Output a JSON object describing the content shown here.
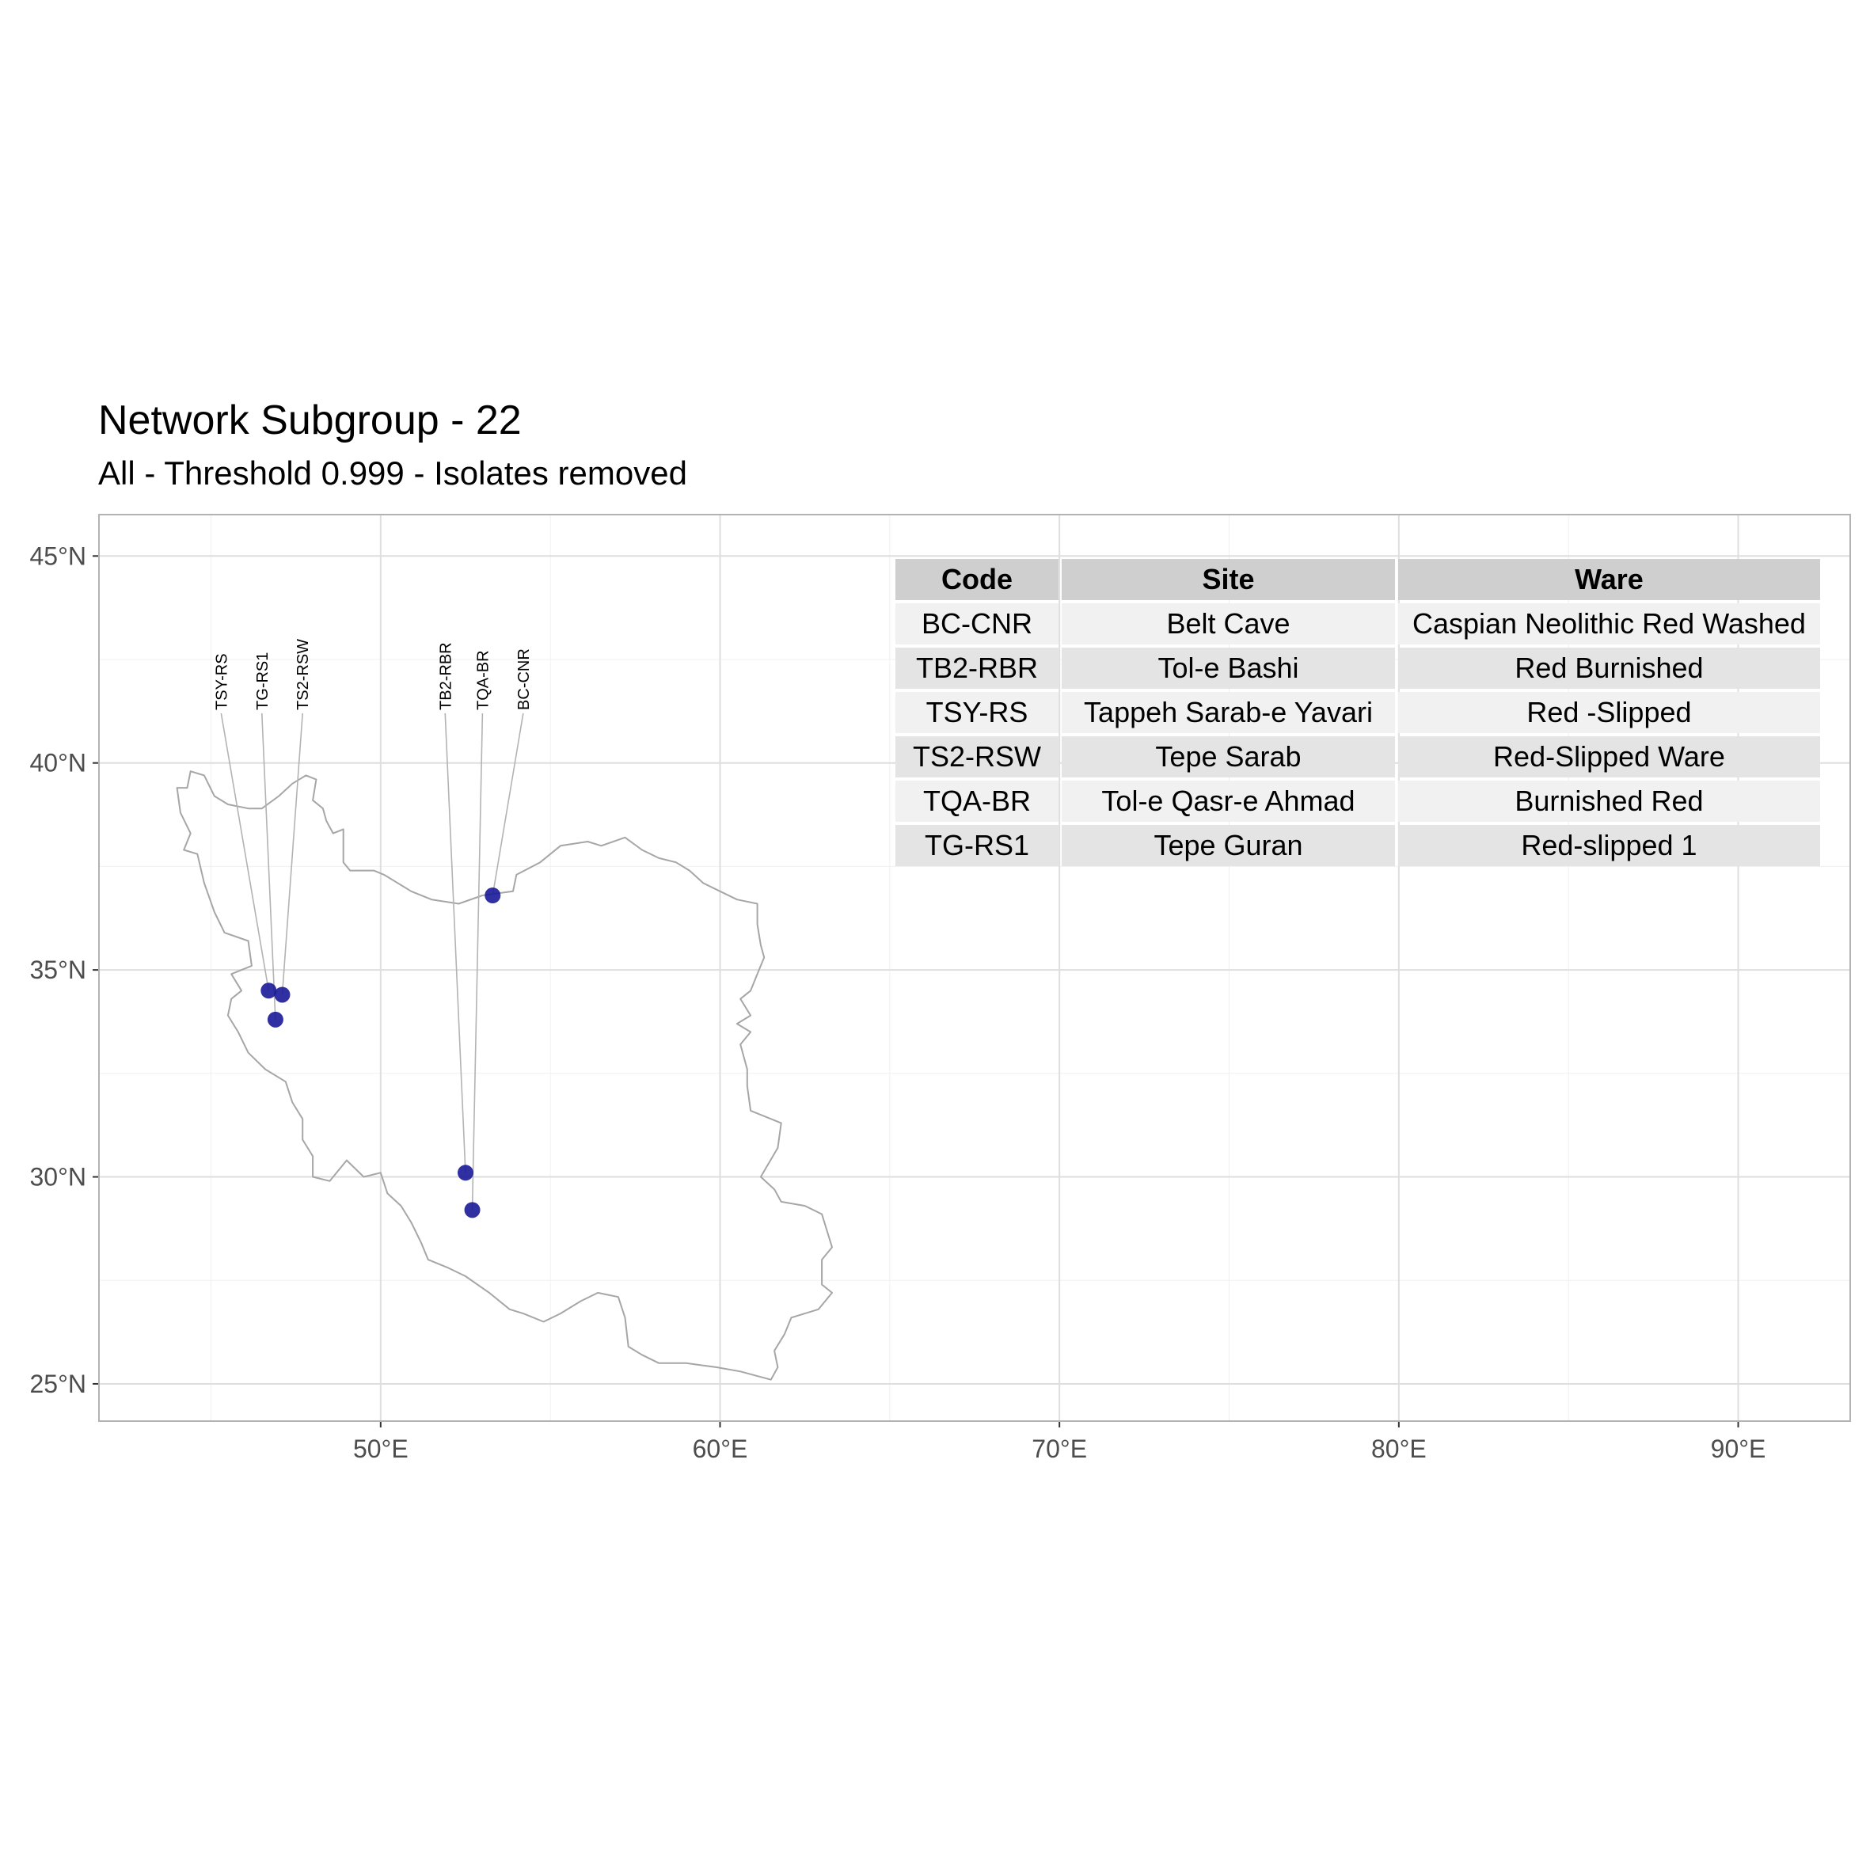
{
  "title": "Network Subgroup - 22",
  "subtitle": "All - Threshold 0.999 - Isolates removed",
  "chart_data": {
    "type": "scatter",
    "xlim": [
      41.7,
      93.3
    ],
    "ylim": [
      24.1,
      46.0
    ],
    "x_ticks": [
      50,
      60,
      70,
      80,
      90
    ],
    "y_ticks": [
      25,
      30,
      35,
      40,
      45
    ],
    "x_tick_labels": [
      "50°E",
      "60°E",
      "70°E",
      "80°E",
      "90°E"
    ],
    "y_tick_labels": [
      "25°N",
      "30°N",
      "35°N",
      "40°N",
      "45°N"
    ],
    "grid": true,
    "point_color": "#1a1a99",
    "outline_color": "#a6a6a6",
    "points": [
      {
        "code": "TSY-RS",
        "x": 46.7,
        "y": 34.5,
        "label_x": 45.3
      },
      {
        "code": "TG-RS1",
        "x": 46.9,
        "y": 33.8,
        "label_x": 46.5
      },
      {
        "code": "TS2-RSW",
        "x": 47.1,
        "y": 34.4,
        "label_x": 47.7
      },
      {
        "code": "TB2-RBR",
        "x": 52.5,
        "y": 30.1,
        "label_x": 51.9
      },
      {
        "code": "TQA-BR",
        "x": 52.7,
        "y": 29.2,
        "label_x": 53.0
      },
      {
        "code": "BC-CNR",
        "x": 53.3,
        "y": 36.8,
        "label_x": 54.2
      }
    ],
    "label_y": 41.2,
    "iran_outline": [
      [
        44.0,
        39.4
      ],
      [
        44.3,
        39.4
      ],
      [
        44.4,
        39.8
      ],
      [
        44.8,
        39.7
      ],
      [
        45.1,
        39.2
      ],
      [
        45.5,
        39.0
      ],
      [
        46.1,
        38.9
      ],
      [
        46.5,
        38.9
      ],
      [
        47.0,
        39.2
      ],
      [
        47.4,
        39.5
      ],
      [
        47.8,
        39.7
      ],
      [
        48.1,
        39.6
      ],
      [
        48.0,
        39.1
      ],
      [
        48.3,
        38.9
      ],
      [
        48.4,
        38.6
      ],
      [
        48.6,
        38.3
      ],
      [
        48.9,
        38.4
      ],
      [
        48.9,
        37.6
      ],
      [
        49.1,
        37.4
      ],
      [
        49.8,
        37.4
      ],
      [
        50.1,
        37.3
      ],
      [
        50.5,
        37.1
      ],
      [
        50.9,
        36.9
      ],
      [
        51.5,
        36.7
      ],
      [
        52.3,
        36.6
      ],
      [
        53.0,
        36.8
      ],
      [
        53.9,
        36.9
      ],
      [
        54.0,
        37.3
      ],
      [
        54.7,
        37.6
      ],
      [
        55.3,
        38.0
      ],
      [
        56.1,
        38.1
      ],
      [
        56.5,
        38.0
      ],
      [
        57.2,
        38.2
      ],
      [
        57.7,
        37.9
      ],
      [
        58.2,
        37.7
      ],
      [
        58.7,
        37.6
      ],
      [
        59.1,
        37.4
      ],
      [
        59.5,
        37.1
      ],
      [
        60.0,
        36.9
      ],
      [
        60.5,
        36.7
      ],
      [
        61.1,
        36.6
      ],
      [
        61.1,
        36.1
      ],
      [
        61.2,
        35.6
      ],
      [
        61.3,
        35.3
      ],
      [
        61.1,
        34.9
      ],
      [
        60.9,
        34.5
      ],
      [
        60.6,
        34.3
      ],
      [
        60.9,
        33.9
      ],
      [
        60.5,
        33.7
      ],
      [
        60.9,
        33.5
      ],
      [
        60.6,
        33.2
      ],
      [
        60.8,
        32.6
      ],
      [
        60.8,
        32.2
      ],
      [
        60.9,
        31.6
      ],
      [
        61.5,
        31.4
      ],
      [
        61.8,
        31.3
      ],
      [
        61.7,
        30.7
      ],
      [
        61.2,
        30.0
      ],
      [
        61.6,
        29.7
      ],
      [
        61.8,
        29.4
      ],
      [
        62.5,
        29.3
      ],
      [
        63.0,
        29.1
      ],
      [
        63.3,
        28.3
      ],
      [
        63.0,
        28.0
      ],
      [
        63.0,
        27.4
      ],
      [
        63.3,
        27.2
      ],
      [
        62.9,
        26.8
      ],
      [
        62.1,
        26.6
      ],
      [
        61.9,
        26.2
      ],
      [
        61.6,
        25.8
      ],
      [
        61.7,
        25.4
      ],
      [
        61.5,
        25.1
      ],
      [
        60.6,
        25.3
      ],
      [
        59.9,
        25.4
      ],
      [
        59.0,
        25.5
      ],
      [
        58.2,
        25.5
      ],
      [
        57.7,
        25.7
      ],
      [
        57.3,
        25.9
      ],
      [
        57.2,
        26.6
      ],
      [
        57.0,
        27.1
      ],
      [
        56.4,
        27.2
      ],
      [
        55.9,
        27.0
      ],
      [
        55.3,
        26.7
      ],
      [
        54.8,
        26.5
      ],
      [
        54.2,
        26.7
      ],
      [
        53.8,
        26.8
      ],
      [
        53.2,
        27.2
      ],
      [
        52.5,
        27.6
      ],
      [
        52.0,
        27.8
      ],
      [
        51.4,
        28.0
      ],
      [
        51.2,
        28.4
      ],
      [
        50.9,
        28.9
      ],
      [
        50.6,
        29.3
      ],
      [
        50.2,
        29.6
      ],
      [
        50.0,
        30.1
      ],
      [
        49.5,
        30.0
      ],
      [
        49.0,
        30.4
      ],
      [
        48.5,
        29.9
      ],
      [
        48.0,
        30.0
      ],
      [
        48.0,
        30.5
      ],
      [
        47.7,
        30.9
      ],
      [
        47.7,
        31.4
      ],
      [
        47.4,
        31.8
      ],
      [
        47.2,
        32.3
      ],
      [
        46.6,
        32.6
      ],
      [
        46.1,
        33.0
      ],
      [
        45.8,
        33.5
      ],
      [
        45.5,
        33.9
      ],
      [
        45.6,
        34.3
      ],
      [
        45.9,
        34.5
      ],
      [
        45.6,
        34.9
      ],
      [
        46.2,
        35.1
      ],
      [
        46.1,
        35.7
      ],
      [
        45.4,
        35.9
      ],
      [
        45.1,
        36.4
      ],
      [
        44.8,
        37.1
      ],
      [
        44.6,
        37.8
      ],
      [
        44.2,
        37.9
      ],
      [
        44.4,
        38.3
      ],
      [
        44.1,
        38.8
      ],
      [
        44.0,
        39.4
      ]
    ]
  },
  "legend_table": {
    "headers": [
      "Code",
      "Site",
      "Ware"
    ],
    "rows": [
      [
        "BC-CNR",
        "Belt Cave",
        "Caspian Neolithic Red Washed"
      ],
      [
        "TB2-RBR",
        "Tol-e Bashi",
        "Red Burnished"
      ],
      [
        "TSY-RS",
        "Tappeh Sarab-e Yavari",
        "Red -Slipped"
      ],
      [
        "TS2-RSW",
        "Tepe Sarab",
        "Red-Slipped Ware"
      ],
      [
        "TQA-BR",
        "Tol-e Qasr-e Ahmad",
        "Burnished Red"
      ],
      [
        "TG-RS1",
        "Tepe Guran",
        "Red-slipped 1"
      ]
    ]
  }
}
